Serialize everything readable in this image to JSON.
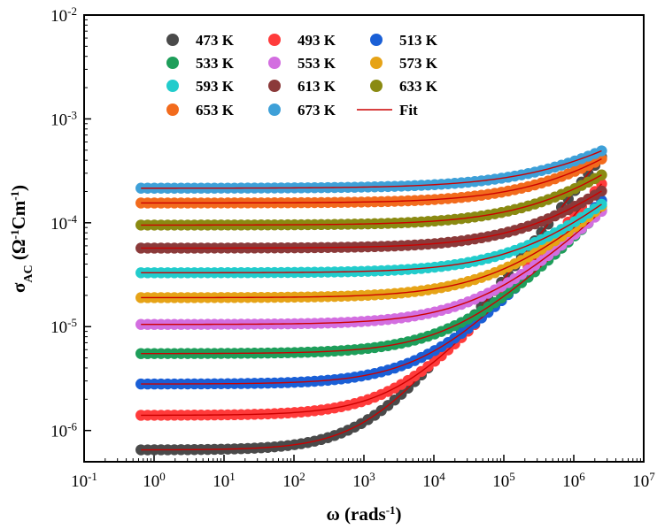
{
  "chart_data": {
    "type": "scatter",
    "xscale": "log",
    "yscale": "log",
    "xlim": [
      0.1,
      10000000
    ],
    "ylim": [
      5e-07,
      0.01
    ],
    "x_ticks": [
      {
        "v": 0.1,
        "base": "10",
        "exp": "-1"
      },
      {
        "v": 1,
        "base": "10",
        "exp": "0"
      },
      {
        "v": 10,
        "base": "10",
        "exp": "1"
      },
      {
        "v": 100,
        "base": "10",
        "exp": "2"
      },
      {
        "v": 1000,
        "base": "10",
        "exp": "3"
      },
      {
        "v": 10000,
        "base": "10",
        "exp": "4"
      },
      {
        "v": 100000,
        "base": "10",
        "exp": "5"
      },
      {
        "v": 1000000,
        "base": "10",
        "exp": "6"
      },
      {
        "v": 10000000,
        "base": "10",
        "exp": "7"
      }
    ],
    "y_ticks": [
      {
        "v": 1e-06,
        "base": "10",
        "exp": "-6"
      },
      {
        "v": 1e-05,
        "base": "10",
        "exp": "-5"
      },
      {
        "v": 0.0001,
        "base": "10",
        "exp": "-4"
      },
      {
        "v": 0.001,
        "base": "10",
        "exp": "-3"
      },
      {
        "v": 0.01,
        "base": "10",
        "exp": "-2"
      }
    ],
    "xlabel": {
      "pre": "ω (rads",
      "sup": "-1",
      "post": ")"
    },
    "ylabel": {
      "sym": "σ",
      "sub": "AC",
      "mid1": " (Ω",
      "sup1": "-1",
      "mid2": "Cm",
      "sup2": "-1",
      "post": ")"
    },
    "x_range": [
      0.65,
      2500000
    ],
    "legend_position": "top-left",
    "fit_label": "Fit",
    "fit_color": "#cc0000",
    "series": [
      {
        "name": "473 K",
        "color": "#4a4a4a",
        "sigma_dc": 6.5e-07,
        "omega_c": 1200,
        "n": 0.85
      },
      {
        "name": "493 K",
        "color": "#ff3b3b",
        "sigma_dc": 1.4e-06,
        "omega_c": 3500,
        "n": 0.78
      },
      {
        "name": "513 K",
        "color": "#1a5fd6",
        "sigma_dc": 2.8e-06,
        "omega_c": 9000,
        "n": 0.72
      },
      {
        "name": "533 K",
        "color": "#1e9e5a",
        "sigma_dc": 5.5e-06,
        "omega_c": 25000,
        "n": 0.68
      },
      {
        "name": "553 K",
        "color": "#d36ee0",
        "sigma_dc": 1.05e-05,
        "omega_c": 60000,
        "n": 0.65
      },
      {
        "name": "573 K",
        "color": "#e6a317",
        "sigma_dc": 1.9e-05,
        "omega_c": 120000,
        "n": 0.62
      },
      {
        "name": "593 K",
        "color": "#22cccc",
        "sigma_dc": 3.3e-05,
        "omega_c": 300000,
        "n": 0.6
      },
      {
        "name": "613 K",
        "color": "#8b3a3a",
        "sigma_dc": 5.7e-05,
        "omega_c": 500000,
        "n": 0.58
      },
      {
        "name": "633 K",
        "color": "#8a8a12",
        "sigma_dc": 9.5e-05,
        "omega_c": 700000,
        "n": 0.56
      },
      {
        "name": "653 K",
        "color": "#f26b1d",
        "sigma_dc": 0.000155,
        "omega_c": 1000000,
        "n": 0.55
      },
      {
        "name": "673 K",
        "color": "#3ea0d8",
        "sigma_dc": 0.000215,
        "omega_c": 1500000,
        "n": 0.5
      }
    ]
  }
}
